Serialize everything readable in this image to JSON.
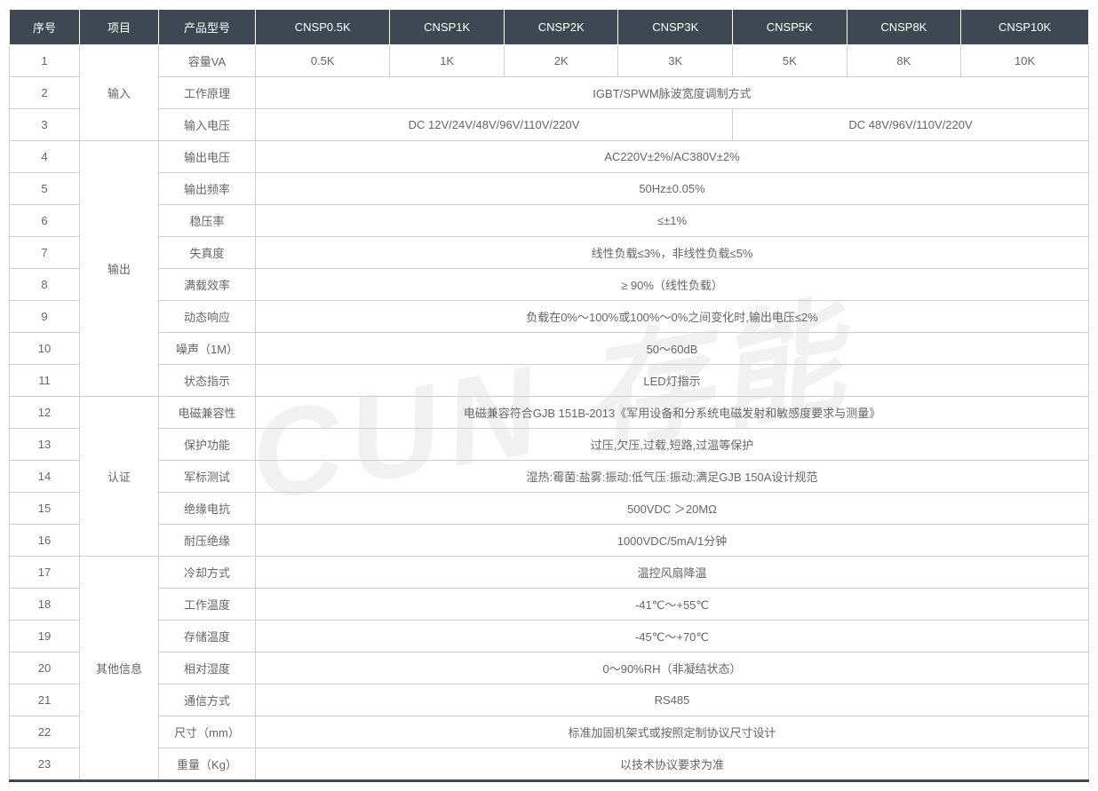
{
  "watermark": "CUN 存能",
  "table": {
    "header_bg": "#3d4852",
    "header_fg": "#ffffff",
    "cell_fg": "#666666",
    "border_color": "#d0d0d0",
    "headers": [
      "序号",
      "项目",
      "产品型号",
      "CNSP0.5K",
      "CNSP1K",
      "CNSP2K",
      "CNSP3K",
      "CNSP5K",
      "CNSP8K",
      "CNSP10K"
    ],
    "groups": [
      {
        "name": "输入",
        "rows": 3
      },
      {
        "name": "输出",
        "rows": 8
      },
      {
        "name": "认证",
        "rows": 5
      },
      {
        "name": "其他信息",
        "rows": 7
      }
    ],
    "rows": [
      {
        "seq": "1",
        "param": "容量VA",
        "cells": [
          "0.5K",
          "1K",
          "2K",
          "3K",
          "5K",
          "8K",
          "10K"
        ]
      },
      {
        "seq": "2",
        "param": "工作原理",
        "merged": "IGBT/SPWM脉波宽度调制方式",
        "span": 7
      },
      {
        "seq": "3",
        "param": "输入电压",
        "split": [
          {
            "text": "DC 12V/24V/48V/96V/110V/220V",
            "span": 4
          },
          {
            "text": "DC 48V/96V/110V/220V",
            "span": 3
          }
        ]
      },
      {
        "seq": "4",
        "param": "输出电压",
        "merged": "AC220V±2%/AC380V±2%",
        "span": 7
      },
      {
        "seq": "5",
        "param": "输出频率",
        "merged": "50Hz±0.05%",
        "span": 7
      },
      {
        "seq": "6",
        "param": "稳压率",
        "merged": "≤±1%",
        "span": 7
      },
      {
        "seq": "7",
        "param": "失真度",
        "merged": "线性负载≤3%，非线性负载≤5%",
        "span": 7
      },
      {
        "seq": "8",
        "param": "满载效率",
        "merged": "≥ 90%（线性负载）",
        "span": 7
      },
      {
        "seq": "9",
        "param": "动态响应",
        "merged": "负载在0%～100%或100%～0%之间变化时,输出电压≤2%",
        "span": 7
      },
      {
        "seq": "10",
        "param": "噪声（1M）",
        "merged": "50～60dB",
        "span": 7
      },
      {
        "seq": "11",
        "param": "状态指示",
        "merged": "LED灯指示",
        "span": 7
      },
      {
        "seq": "12",
        "param": "电磁兼容性",
        "merged": "电磁兼容符合GJB 151B-2013《军用设备和分系统电磁发射和敏感度要求与测量》",
        "span": 7
      },
      {
        "seq": "13",
        "param": "保护功能",
        "merged": "过压,欠压,过载,短路,过温等保护",
        "span": 7
      },
      {
        "seq": "14",
        "param": "军标测试",
        "merged": "湿热:霉菌:盐雾:振动:低气压:振动:满足GJB 150A设计规范",
        "span": 7
      },
      {
        "seq": "15",
        "param": "绝缘电抗",
        "merged": "500VDC  ＞20MΩ",
        "span": 7
      },
      {
        "seq": "16",
        "param": "耐压绝缘",
        "merged": "1000VDC/5mA/1分钟",
        "span": 7
      },
      {
        "seq": "17",
        "param": "冷却方式",
        "merged": "温控风扇降温",
        "span": 7
      },
      {
        "seq": "18",
        "param": "工作温度",
        "merged": "-41℃～+55℃",
        "span": 7
      },
      {
        "seq": "19",
        "param": "存储温度",
        "merged": "-45℃～+70℃",
        "span": 7
      },
      {
        "seq": "20",
        "param": "相对湿度",
        "merged": "0～90%RH（非凝结状态）",
        "span": 7
      },
      {
        "seq": "21",
        "param": "通信方式",
        "merged": "RS485",
        "span": 7
      },
      {
        "seq": "22",
        "param": "尺寸（mm）",
        "merged": "标准加固机架式或按照定制协议尺寸设计",
        "span": 7
      },
      {
        "seq": "23",
        "param": "重量（Kg）",
        "merged": "以技术协议要求为准",
        "span": 7
      }
    ]
  }
}
